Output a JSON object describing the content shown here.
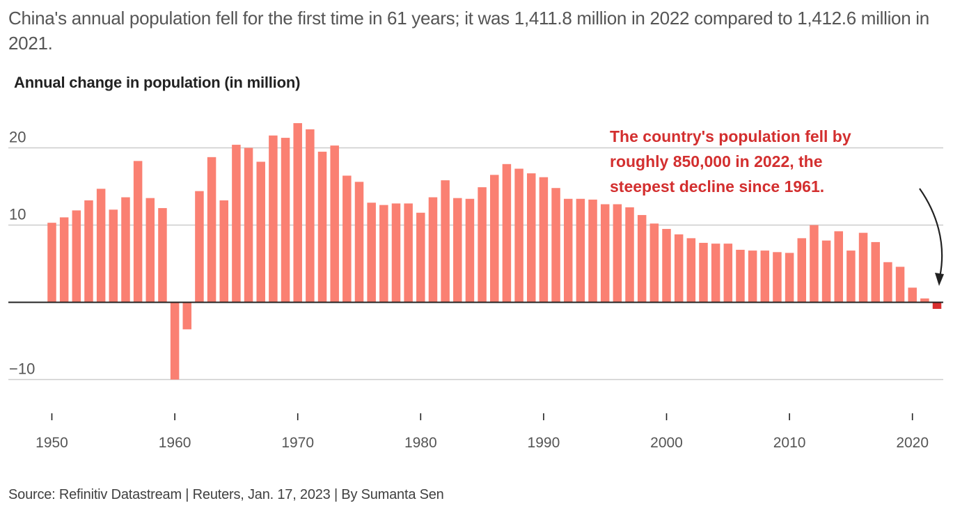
{
  "subtitle": "China's annual population fell for the first time in 61 years; it was 1,411.8 million in 2022 compared to 1,412.6 million in 2021.",
  "source": "Source: Refinitiv Datastream | Reuters, Jan. 17, 2023 | By Sumanta Sen",
  "colors": {
    "bar": "#fa8072",
    "highlight_bar": "#d93030",
    "annotation": "#d32f2f",
    "gridline": "#cccccc",
    "zero_line": "#222222"
  },
  "chart_data": {
    "type": "bar",
    "title": "Annual change in population (in million)",
    "xlabel": "",
    "ylabel": "",
    "ylim": [
      -10,
      23.5
    ],
    "grid": true,
    "yticks": [
      20,
      10,
      0,
      -10
    ],
    "ytick_labels": [
      "20",
      "10",
      "",
      "−10"
    ],
    "xticks": [
      1950,
      1960,
      1970,
      1980,
      1990,
      2000,
      2010,
      2020
    ],
    "xtick_labels": [
      "1950",
      "1960",
      "1970",
      "1980",
      "1990",
      "2000",
      "2010",
      "2020"
    ],
    "highlight_year": 2022,
    "annotation": {
      "lines": [
        "The country's population fell by",
        "roughly 850,000 in 2022, the",
        "steepest decline since 1961."
      ],
      "points_to": 2022
    },
    "categories": [
      1950,
      1951,
      1952,
      1953,
      1954,
      1955,
      1956,
      1957,
      1958,
      1959,
      1960,
      1961,
      1962,
      1963,
      1964,
      1965,
      1966,
      1967,
      1968,
      1969,
      1970,
      1971,
      1972,
      1973,
      1974,
      1975,
      1976,
      1977,
      1978,
      1979,
      1980,
      1981,
      1982,
      1983,
      1984,
      1985,
      1986,
      1987,
      1988,
      1989,
      1990,
      1991,
      1992,
      1993,
      1994,
      1995,
      1996,
      1997,
      1998,
      1999,
      2000,
      2001,
      2002,
      2003,
      2004,
      2005,
      2006,
      2007,
      2008,
      2009,
      2010,
      2011,
      2012,
      2013,
      2014,
      2015,
      2016,
      2017,
      2018,
      2019,
      2020,
      2021,
      2022
    ],
    "values": [
      10.3,
      11.0,
      11.9,
      13.2,
      14.7,
      12.0,
      13.6,
      18.3,
      13.5,
      12.2,
      -10.0,
      -3.5,
      14.4,
      18.8,
      13.2,
      20.4,
      20.0,
      18.2,
      21.6,
      21.3,
      23.2,
      22.4,
      19.5,
      20.3,
      16.4,
      15.6,
      12.9,
      12.6,
      12.8,
      12.8,
      11.6,
      13.6,
      15.8,
      13.5,
      13.4,
      14.9,
      16.5,
      17.9,
      17.3,
      16.7,
      16.2,
      14.8,
      13.4,
      13.4,
      13.3,
      12.7,
      12.7,
      12.3,
      11.3,
      10.2,
      9.5,
      8.8,
      8.3,
      7.7,
      7.6,
      7.6,
      6.8,
      6.7,
      6.7,
      6.5,
      6.4,
      8.3,
      10.0,
      8.0,
      9.2,
      6.7,
      9.0,
      7.8,
      5.2,
      4.6,
      1.9,
      0.5,
      -0.85
    ]
  }
}
